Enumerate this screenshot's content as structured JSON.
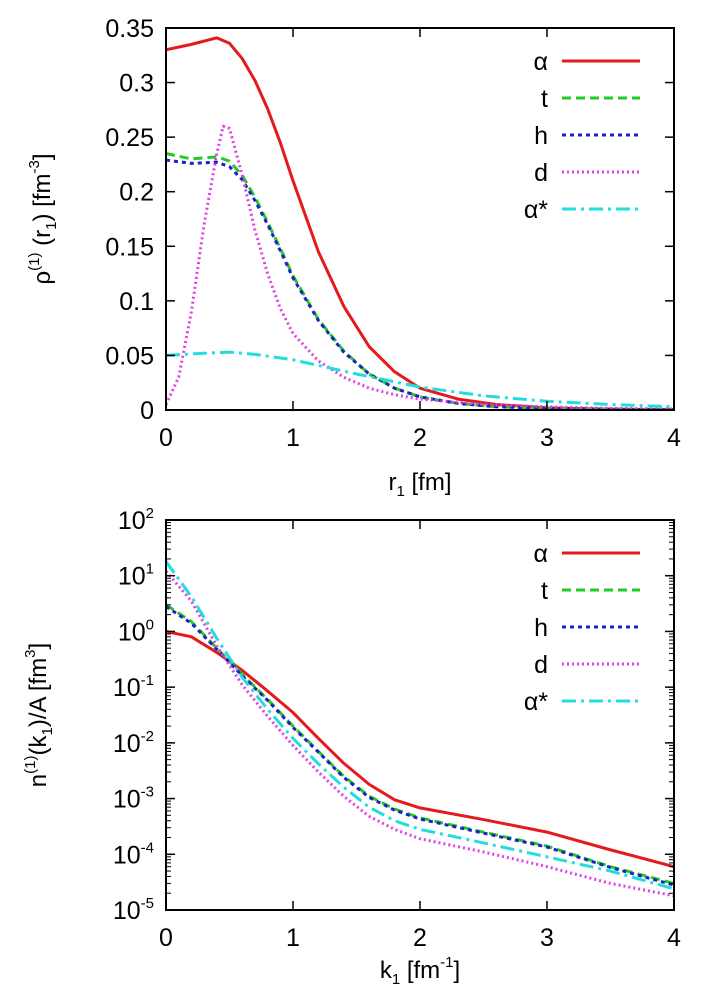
{
  "chart_data": [
    {
      "type": "line",
      "xlabel": {
        "base": "r",
        "sub": "1",
        "unit": " [fm]"
      },
      "ylabel": {
        "pre": "ρ",
        "sup1": "(1)",
        "mid": " (r",
        "sub": "1",
        "post": ") [fm",
        "sup2": "-3",
        "close": "]"
      },
      "xlim": [
        0,
        4
      ],
      "ylim": [
        0,
        0.35
      ],
      "x_ticks": [
        0,
        1,
        2,
        3,
        4
      ],
      "x_tick_labels": [
        "0",
        "1",
        "2",
        "3",
        "4"
      ],
      "y_ticks": [
        0,
        0.05,
        0.1,
        0.15,
        0.2,
        0.25,
        0.3,
        0.35
      ],
      "y_tick_labels": [
        "0",
        "0.05",
        "0.1",
        "0.15",
        "0.2",
        "0.25",
        "0.3",
        "0.35"
      ],
      "legend_position": "top-right",
      "series": [
        {
          "name": "α",
          "color": "#e41a1c",
          "dash": "solid",
          "x": [
            0,
            0.2,
            0.4,
            0.5,
            0.6,
            0.7,
            0.8,
            0.9,
            1.0,
            1.2,
            1.4,
            1.6,
            1.8,
            2.0,
            2.3,
            2.6,
            3.0,
            3.5,
            4.0
          ],
          "y": [
            0.33,
            0.335,
            0.341,
            0.336,
            0.322,
            0.302,
            0.276,
            0.245,
            0.21,
            0.145,
            0.095,
            0.058,
            0.035,
            0.02,
            0.01,
            0.005,
            0.002,
            0.0008,
            0.0003
          ]
        },
        {
          "name": "t",
          "color": "#22cc22",
          "dash": "dashed",
          "x": [
            0,
            0.2,
            0.4,
            0.5,
            0.6,
            0.7,
            0.8,
            0.9,
            1.0,
            1.2,
            1.4,
            1.6,
            1.8,
            2.0,
            2.3,
            2.6,
            3.0,
            3.5,
            4.0
          ],
          "y": [
            0.235,
            0.23,
            0.232,
            0.228,
            0.215,
            0.195,
            0.172,
            0.148,
            0.123,
            0.083,
            0.054,
            0.033,
            0.02,
            0.012,
            0.006,
            0.003,
            0.0015,
            0.0006,
            0.0002
          ]
        },
        {
          "name": "h",
          "color": "#1f1fcc",
          "dash": "dotted",
          "x": [
            0,
            0.2,
            0.4,
            0.5,
            0.6,
            0.7,
            0.8,
            0.9,
            1.0,
            1.2,
            1.4,
            1.6,
            1.8,
            2.0,
            2.3,
            2.6,
            3.0,
            3.5,
            4.0
          ],
          "y": [
            0.229,
            0.226,
            0.227,
            0.223,
            0.211,
            0.192,
            0.17,
            0.146,
            0.121,
            0.082,
            0.053,
            0.033,
            0.02,
            0.012,
            0.006,
            0.003,
            0.0015,
            0.0006,
            0.0002
          ]
        },
        {
          "name": "d",
          "color": "#e040e0",
          "dash": "fine-dotted",
          "x": [
            0,
            0.1,
            0.2,
            0.3,
            0.4,
            0.45,
            0.5,
            0.6,
            0.7,
            0.8,
            0.9,
            1.0,
            1.2,
            1.4,
            1.6,
            1.8,
            2.0,
            2.5,
            3.0,
            3.5,
            4.0
          ],
          "y": [
            0.005,
            0.03,
            0.09,
            0.17,
            0.235,
            0.26,
            0.258,
            0.215,
            0.165,
            0.125,
            0.093,
            0.07,
            0.045,
            0.03,
            0.02,
            0.014,
            0.01,
            0.005,
            0.003,
            0.0015,
            0.001
          ]
        },
        {
          "name": "α*",
          "color": "#22dddd",
          "dash": "dash-dot",
          "x": [
            0,
            0.3,
            0.5,
            0.7,
            1.0,
            1.5,
            2.0,
            2.5,
            3.0,
            3.5,
            4.0
          ],
          "y": [
            0.05,
            0.052,
            0.053,
            0.051,
            0.046,
            0.033,
            0.021,
            0.013,
            0.008,
            0.005,
            0.003
          ]
        }
      ]
    },
    {
      "type": "line",
      "yscale": "log",
      "xlabel": {
        "base": "k",
        "sub": "1",
        "unit": " [fm",
        "sup": "-1",
        "close": "]"
      },
      "ylabel": {
        "pre": "n",
        "sup1": "(1)",
        "mid": "(k",
        "sub": "1",
        "post": ")/A [fm",
        "sup2": "3",
        "close": "]"
      },
      "xlim": [
        0,
        4
      ],
      "ylim": [
        1e-05,
        100
      ],
      "x_ticks": [
        0,
        1,
        2,
        3,
        4
      ],
      "x_tick_labels": [
        "0",
        "1",
        "2",
        "3",
        "4"
      ],
      "y_ticks": [
        1e-05,
        0.0001,
        0.001,
        0.01,
        0.1,
        1,
        10,
        100
      ],
      "y_tick_base": "10",
      "y_tick_exponents": [
        "-5",
        "-4",
        "-3",
        "-2",
        "-1",
        "0",
        "1",
        "2"
      ],
      "legend_position": "top-right",
      "series": [
        {
          "name": "α",
          "color": "#e41a1c",
          "dash": "solid",
          "x": [
            0,
            0.2,
            0.4,
            0.6,
            0.8,
            1.0,
            1.2,
            1.4,
            1.6,
            1.8,
            2.0,
            2.5,
            3.0,
            3.5,
            4.0
          ],
          "y": [
            1.0,
            0.8,
            0.42,
            0.2,
            0.085,
            0.035,
            0.012,
            0.0043,
            0.0018,
            0.00095,
            0.00068,
            0.00042,
            0.00025,
            0.00012,
            6e-05
          ]
        },
        {
          "name": "t",
          "color": "#22cc22",
          "dash": "dashed",
          "x": [
            0,
            0.2,
            0.4,
            0.6,
            0.8,
            1.0,
            1.2,
            1.4,
            1.6,
            1.8,
            2.0,
            2.5,
            3.0,
            3.5,
            4.0
          ],
          "y": [
            3.0,
            1.5,
            0.5,
            0.17,
            0.06,
            0.02,
            0.007,
            0.0025,
            0.0011,
            0.00065,
            0.00045,
            0.00025,
            0.00014,
            6e-05,
            3e-05
          ]
        },
        {
          "name": "h",
          "color": "#1f1fcc",
          "dash": "dotted",
          "x": [
            0,
            0.2,
            0.4,
            0.6,
            0.8,
            1.0,
            1.2,
            1.4,
            1.6,
            1.8,
            2.0,
            2.5,
            3.0,
            3.5,
            4.0
          ],
          "y": [
            2.8,
            1.4,
            0.48,
            0.16,
            0.058,
            0.019,
            0.0068,
            0.0024,
            0.00105,
            0.00062,
            0.00043,
            0.00024,
            0.000135,
            5.8e-05,
            2.8e-05
          ]
        },
        {
          "name": "d",
          "color": "#e040e0",
          "dash": "fine-dotted",
          "x": [
            0,
            0.2,
            0.4,
            0.6,
            0.8,
            1.0,
            1.2,
            1.4,
            1.6,
            1.8,
            2.0,
            2.5,
            3.0,
            3.5,
            4.0
          ],
          "y": [
            12.0,
            3.5,
            0.55,
            0.11,
            0.03,
            0.009,
            0.003,
            0.0011,
            0.00048,
            0.00028,
            0.00019,
            0.00011,
            6e-05,
            3e-05,
            1.8e-05
          ]
        },
        {
          "name": "α*",
          "color": "#22dddd",
          "dash": "dash-dot",
          "x": [
            0,
            0.2,
            0.4,
            0.6,
            0.8,
            1.0,
            1.2,
            1.4,
            1.6,
            1.8,
            2.0,
            2.5,
            3.0,
            3.5,
            4.0
          ],
          "y": [
            18.0,
            4.2,
            0.75,
            0.15,
            0.04,
            0.012,
            0.0042,
            0.0016,
            0.0007,
            0.0004,
            0.00028,
            0.00016,
            9e-05,
            5e-05,
            2.4e-05
          ]
        }
      ]
    }
  ]
}
